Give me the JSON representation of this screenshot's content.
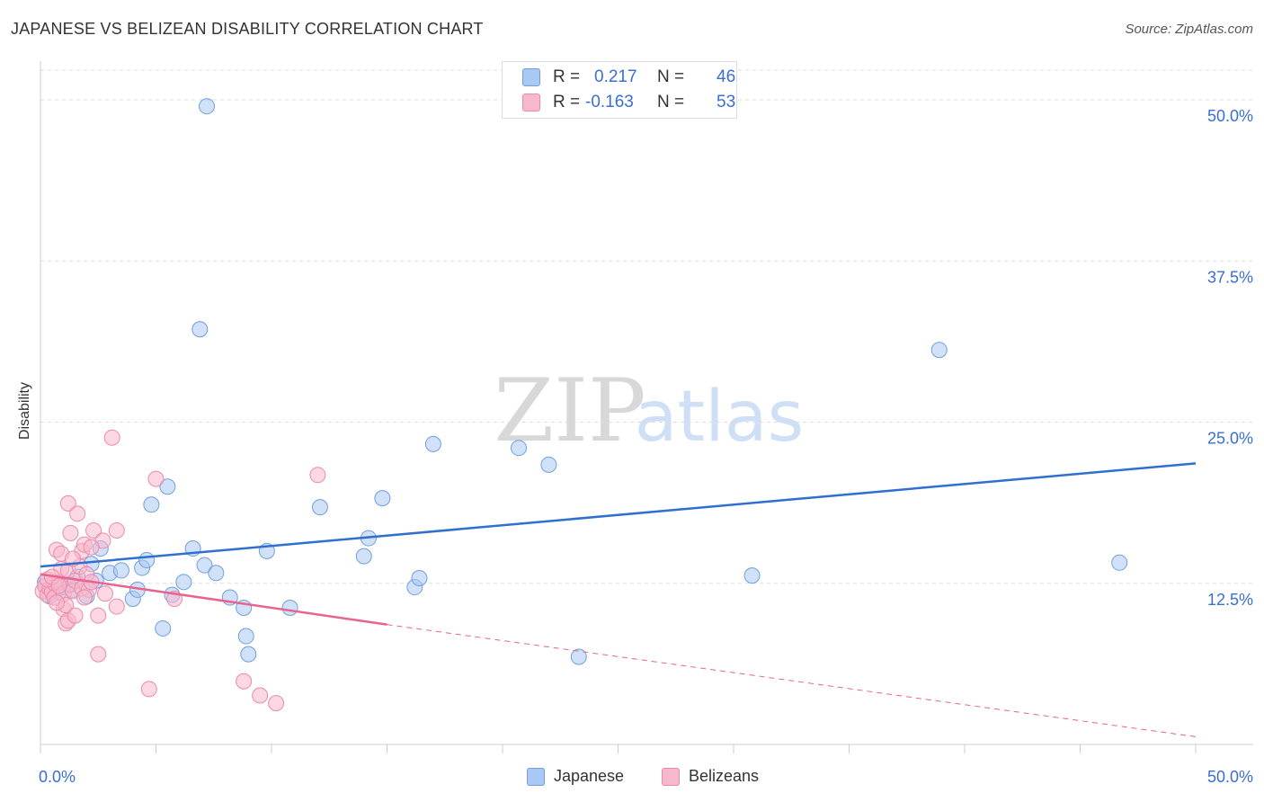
{
  "title": "JAPANESE VS BELIZEAN DISABILITY CORRELATION CHART",
  "source": "Source: ZipAtlas.com",
  "watermark": {
    "zip": "ZIP",
    "atlas": "atlas"
  },
  "legend_top": {
    "r_label": "R =",
    "n_label": "N =",
    "japanese": {
      "r": "0.217",
      "n": "46"
    },
    "belizeans": {
      "r": "-0.163",
      "n": "53"
    }
  },
  "colors": {
    "japanese_fill": "#a9c8f2",
    "japanese_stroke": "#6f9fe0",
    "japanese_line": "#2f6fd0",
    "belizeans_fill": "#f7b8cc",
    "belizeans_stroke": "#ec8aaa",
    "belizeans_line": "#e8638e",
    "axis_text": "#3a6fd0",
    "grid": "#dddddd"
  },
  "chart_data": {
    "type": "scatter",
    "title": "JAPANESE VS BELIZEAN DISABILITY CORRELATION CHART",
    "xlabel": "",
    "ylabel": "Disability",
    "xlim": [
      0,
      50
    ],
    "ylim": [
      0,
      53
    ],
    "x_tick_labels": [
      "0.0%",
      "50.0%"
    ],
    "y_ticks": [
      12.5,
      25.0,
      37.5,
      50.0
    ],
    "y_tick_labels": [
      "12.5%",
      "25.0%",
      "37.5%",
      "50.0%"
    ],
    "grid": "horizontal dashed",
    "legend": "top-center and bottom",
    "series": [
      {
        "name": "Japanese",
        "r": 0.217,
        "n": 46,
        "trend": {
          "x": [
            0,
            50
          ],
          "y": [
            13.8,
            21.8
          ],
          "style": "solid"
        },
        "points": [
          [
            7.2,
            49.5
          ],
          [
            0.4,
            11.5
          ],
          [
            0.8,
            11.8
          ],
          [
            1.0,
            12.2
          ],
          [
            1.4,
            12.0
          ],
          [
            1.6,
            13.0
          ],
          [
            2.2,
            14.0
          ],
          [
            2.6,
            15.2
          ],
          [
            3.0,
            13.3
          ],
          [
            3.5,
            13.5
          ],
          [
            4.0,
            11.3
          ],
          [
            4.2,
            12.0
          ],
          [
            4.4,
            13.7
          ],
          [
            4.6,
            14.3
          ],
          [
            4.8,
            18.6
          ],
          [
            5.3,
            9.0
          ],
          [
            5.5,
            20.0
          ],
          [
            5.7,
            11.6
          ],
          [
            6.2,
            12.6
          ],
          [
            6.6,
            15.2
          ],
          [
            6.9,
            32.2
          ],
          [
            7.1,
            13.9
          ],
          [
            7.6,
            13.3
          ],
          [
            8.2,
            11.4
          ],
          [
            8.8,
            10.6
          ],
          [
            8.9,
            8.4
          ],
          [
            9.0,
            7.0
          ],
          [
            9.8,
            15.0
          ],
          [
            10.8,
            10.6
          ],
          [
            12.1,
            18.4
          ],
          [
            14.0,
            14.6
          ],
          [
            14.2,
            16.0
          ],
          [
            14.8,
            19.1
          ],
          [
            16.2,
            12.2
          ],
          [
            16.4,
            12.9
          ],
          [
            17.0,
            23.3
          ],
          [
            20.7,
            23.0
          ],
          [
            22.0,
            21.7
          ],
          [
            23.3,
            6.8
          ],
          [
            30.8,
            13.1
          ],
          [
            38.9,
            30.6
          ],
          [
            46.7,
            14.1
          ],
          [
            0.2,
            12.6
          ],
          [
            1.2,
            12.4
          ],
          [
            2.0,
            11.5
          ],
          [
            2.4,
            12.7
          ]
        ]
      },
      {
        "name": "Belizeans",
        "r": -0.163,
        "n": 53,
        "trend": {
          "x": [
            0,
            15
          ],
          "y": [
            13.2,
            9.3
          ],
          "style": "solid",
          "dashed_extension": {
            "x": [
              15,
              50
            ],
            "y": [
              9.3,
              0.6
            ]
          }
        },
        "points": [
          [
            0.1,
            11.9
          ],
          [
            0.2,
            12.3
          ],
          [
            0.3,
            11.6
          ],
          [
            0.4,
            12.1
          ],
          [
            0.5,
            11.8
          ],
          [
            0.6,
            12.5
          ],
          [
            0.6,
            11.4
          ],
          [
            0.7,
            15.1
          ],
          [
            0.8,
            12.6
          ],
          [
            0.9,
            13.6
          ],
          [
            0.9,
            14.8
          ],
          [
            1.0,
            11.7
          ],
          [
            1.0,
            10.5
          ],
          [
            1.1,
            10.8
          ],
          [
            1.1,
            9.4
          ],
          [
            1.2,
            9.6
          ],
          [
            1.2,
            13.5
          ],
          [
            1.2,
            18.7
          ],
          [
            1.3,
            16.4
          ],
          [
            1.3,
            12.4
          ],
          [
            1.4,
            11.9
          ],
          [
            1.5,
            10.0
          ],
          [
            1.5,
            12.7
          ],
          [
            1.6,
            17.9
          ],
          [
            1.7,
            13.8
          ],
          [
            1.8,
            15.0
          ],
          [
            1.8,
            12.1
          ],
          [
            1.9,
            15.5
          ],
          [
            2.0,
            13.2
          ],
          [
            2.1,
            12.0
          ],
          [
            2.2,
            12.6
          ],
          [
            2.3,
            16.6
          ],
          [
            2.5,
            10.0
          ],
          [
            2.5,
            7.0
          ],
          [
            2.7,
            15.8
          ],
          [
            2.8,
            11.7
          ],
          [
            3.1,
            23.8
          ],
          [
            3.3,
            16.6
          ],
          [
            3.3,
            10.7
          ],
          [
            4.7,
            4.3
          ],
          [
            5.0,
            20.6
          ],
          [
            5.8,
            11.3
          ],
          [
            8.8,
            4.9
          ],
          [
            9.5,
            3.8
          ],
          [
            10.2,
            3.2
          ],
          [
            12.0,
            20.9
          ],
          [
            0.3,
            12.8
          ],
          [
            0.5,
            13.0
          ],
          [
            0.7,
            11.0
          ],
          [
            1.4,
            14.4
          ],
          [
            1.9,
            11.4
          ],
          [
            2.2,
            15.3
          ],
          [
            0.8,
            12.3
          ]
        ]
      }
    ]
  }
}
